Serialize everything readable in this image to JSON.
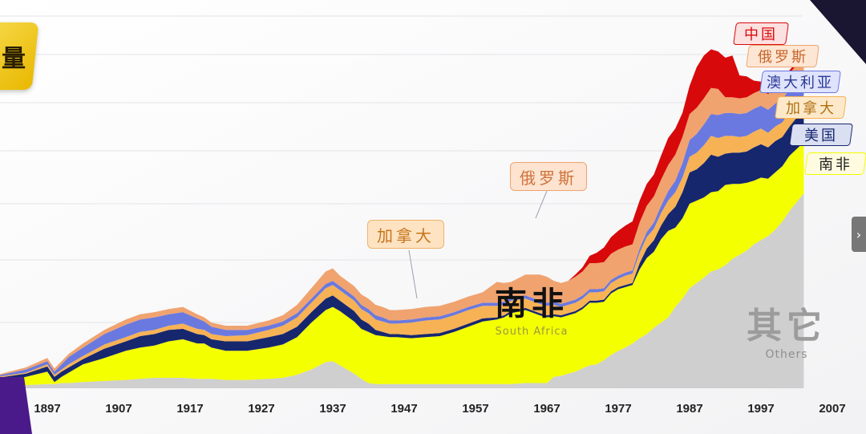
{
  "title_fragment": "量",
  "colors": {
    "others": "#cfcfcf",
    "south_africa": "#f4ff00",
    "usa": "#16276e",
    "canada": "#f7b255",
    "australia": "#6a79df",
    "russia": "#f0a36f",
    "china": "#d8090b"
  },
  "legend": [
    {
      "label": "中国",
      "color": "#d8090b"
    },
    {
      "label": "俄罗斯",
      "color": "#f0a36f"
    },
    {
      "label": "澳大利亚",
      "color": "#6a79df"
    },
    {
      "label": "加拿大",
      "color": "#f7b255"
    },
    {
      "label": "美国",
      "color": "#16276e"
    },
    {
      "label": "南非",
      "color": "#f4ff00"
    }
  ],
  "callouts": {
    "canada": "加拿大",
    "russia": "俄罗斯"
  },
  "region_labels": {
    "south_africa_cn": "南非",
    "south_africa_en": "South Africa",
    "others_cn": "其它",
    "others_en": "Others"
  },
  "next_icon": "›",
  "chart_data": {
    "type": "area",
    "stacked": true,
    "x_tick_labels": [
      "1897",
      "1907",
      "1917",
      "1927",
      "1937",
      "1947",
      "1957",
      "1967",
      "1977",
      "1987",
      "1997",
      "2007"
    ],
    "x": [
      1890,
      1894,
      1897,
      1898,
      1899,
      1900,
      1902,
      1905,
      1908,
      1910,
      1912,
      1914,
      1916,
      1918,
      1919,
      1920,
      1922,
      1925,
      1928,
      1930,
      1932,
      1934,
      1936,
      1937,
      1938,
      1940,
      1941,
      1942,
      1943,
      1944,
      1945,
      1946,
      1948,
      1950,
      1952,
      1954,
      1956,
      1958,
      1960,
      1961,
      1962,
      1964,
      1966,
      1967,
      1968,
      1969,
      1970,
      1971,
      1972,
      1973,
      1974,
      1975,
      1976,
      1977,
      1978,
      1979,
      1980,
      1981,
      1982,
      1983,
      1984,
      1985,
      1986,
      1987,
      1988,
      1989,
      1990,
      1991,
      1992,
      1993,
      1994,
      1995,
      1996,
      1997,
      1998,
      1999,
      2000,
      2001,
      2003
    ],
    "series": [
      {
        "key": "others",
        "values": [
          2,
          3,
          4,
          4,
          5,
          5,
          6,
          7,
          8,
          9,
          10,
          10,
          10,
          9,
          9,
          9,
          8,
          8,
          9,
          10,
          13,
          18,
          25,
          26,
          22,
          14,
          9,
          5,
          4,
          4,
          4,
          4,
          4,
          4,
          4,
          4,
          4,
          4,
          4,
          4,
          4,
          5,
          5,
          5,
          11,
          12,
          14,
          16,
          19,
          22,
          23,
          27,
          32,
          36,
          39,
          43,
          48,
          52,
          58,
          63,
          68,
          78,
          86,
          96,
          101,
          106,
          112,
          114,
          118,
          124,
          128,
          132,
          138,
          142,
          146,
          152,
          160,
          170,
          187
        ]
      },
      {
        "key": "south_africa",
        "values": [
          5,
          8,
          12,
          2,
          6,
          10,
          17,
          22,
          28,
          30,
          31,
          35,
          37,
          34,
          34,
          30,
          28,
          28,
          30,
          32,
          36,
          45,
          50,
          52,
          52,
          50,
          48,
          49,
          47,
          46,
          45,
          45,
          44,
          45,
          46,
          50,
          55,
          60,
          62,
          64,
          68,
          70,
          65,
          63,
          58,
          56,
          56,
          56,
          57,
          60,
          59,
          56,
          59,
          59,
          58,
          56,
          66,
          73,
          73,
          80,
          83,
          76,
          77,
          81,
          79,
          77,
          76,
          75,
          77,
          72,
          68,
          65,
          61,
          60,
          55,
          55,
          53,
          53,
          49
        ]
      },
      {
        "key": "usa",
        "values": [
          3,
          3,
          5,
          5,
          5,
          5,
          5,
          9,
          9,
          11,
          11,
          11,
          10,
          9,
          8,
          8,
          9,
          9,
          10,
          10,
          10,
          10,
          11,
          11,
          10,
          10,
          9,
          8,
          5,
          4,
          3,
          3,
          3,
          3,
          3,
          3,
          3,
          3,
          2,
          2,
          2,
          2,
          2,
          2,
          2,
          2,
          2,
          2,
          2,
          2,
          2,
          2,
          2,
          2,
          2,
          2,
          6,
          9,
          11,
          13,
          16,
          20,
          25,
          30,
          30,
          33,
          36,
          33,
          30,
          30,
          30,
          30,
          32,
          32,
          30,
          30,
          28,
          28,
          32
        ]
      },
      {
        "key": "canada",
        "values": [
          1,
          1,
          2,
          2,
          2,
          3,
          3,
          4,
          4,
          4,
          4,
          4,
          5,
          5,
          5,
          5,
          5,
          6,
          7,
          8,
          9,
          9,
          10,
          10,
          10,
          10,
          10,
          10,
          10,
          10,
          10,
          10,
          12,
          13,
          13,
          13,
          13,
          12,
          11,
          10,
          10,
          9,
          9,
          9,
          9,
          8,
          8,
          8,
          8,
          8,
          8,
          8,
          8,
          8,
          9,
          9,
          10,
          11,
          11,
          12,
          13,
          14,
          14,
          15,
          16,
          17,
          18,
          18,
          17,
          16,
          15,
          15,
          15,
          15,
          14,
          14,
          14,
          14,
          13
        ]
      },
      {
        "key": "australia",
        "values": [
          1,
          3,
          3,
          3,
          5,
          7,
          8,
          10,
          12,
          12,
          12,
          11,
          11,
          10,
          8,
          7,
          6,
          5,
          4,
          4,
          4,
          4,
          4,
          4,
          4,
          4,
          4,
          4,
          4,
          4,
          3,
          3,
          3,
          3,
          3,
          3,
          3,
          3,
          3,
          3,
          3,
          3,
          3,
          3,
          3,
          3,
          3,
          3,
          3,
          3,
          3,
          3,
          3,
          3,
          3,
          3,
          4,
          5,
          6,
          7,
          9,
          11,
          14,
          16,
          18,
          20,
          21,
          22,
          22,
          22,
          22,
          22,
          22,
          22,
          22,
          22,
          22,
          22,
          22
        ]
      },
      {
        "key": "russia",
        "values": [
          1,
          2,
          3,
          3,
          3,
          3,
          4,
          4,
          5,
          5,
          5,
          5,
          5,
          4,
          4,
          4,
          4,
          4,
          5,
          6,
          8,
          10,
          12,
          12,
          10,
          10,
          10,
          10,
          10,
          10,
          10,
          10,
          10,
          10,
          10,
          10,
          10,
          10,
          20,
          18,
          15,
          20,
          25,
          25,
          20,
          20,
          20,
          22,
          23,
          25,
          25,
          25,
          25,
          25,
          25,
          25,
          25,
          25,
          25,
          25,
          25,
          25,
          25,
          25,
          25,
          25,
          25,
          25,
          15,
          15,
          15,
          15,
          15,
          15,
          15,
          15,
          15,
          15,
          15
        ]
      },
      {
        "key": "china",
        "values": [
          0,
          0,
          0,
          0,
          0,
          0,
          0,
          0,
          0,
          0,
          0,
          0,
          0,
          0,
          0,
          0,
          0,
          0,
          0,
          0,
          0,
          0,
          0,
          0,
          0,
          0,
          0,
          0,
          0,
          0,
          0,
          0,
          0,
          0,
          0,
          0,
          0,
          0,
          0,
          0,
          0,
          0,
          0,
          0,
          0,
          0,
          0,
          2,
          4,
          7,
          10,
          14,
          16,
          18,
          20,
          22,
          21,
          21,
          21,
          23,
          26,
          25,
          23,
          27,
          39,
          41,
          37,
          36,
          38,
          40,
          22,
          20,
          12,
          8,
          5,
          4,
          3,
          3,
          3
        ]
      }
    ],
    "grid": true,
    "legend_position": "right"
  }
}
